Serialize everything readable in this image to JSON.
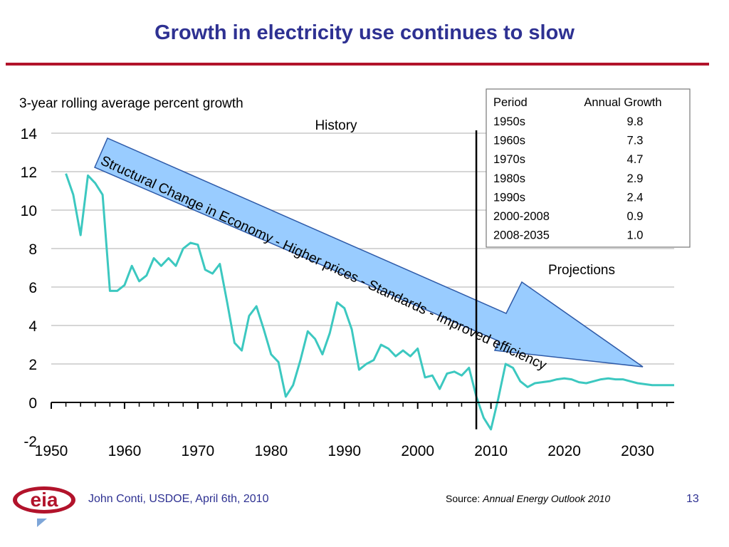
{
  "slide": {
    "title": "Growth in electricity use continues to slow",
    "author": "John Conti, USDOE, April 6th, 2010",
    "source_label": "Source:",
    "source_title": "Annual Energy Outlook 2010",
    "page_number": "13",
    "logo_text": "eia"
  },
  "colors": {
    "title": "#2e3192",
    "rule": "#b2132b",
    "line": "#3cc8c0",
    "arrow_fill": "#99ccff",
    "arrow_stroke": "#2e5aa8",
    "grid": "#c8c8c8"
  },
  "chart_data": {
    "type": "line",
    "ylabel": "3-year rolling average percent growth",
    "xlim": [
      1950,
      2035
    ],
    "ylim": [
      -2,
      14
    ],
    "x_ticks": [
      1950,
      1960,
      1970,
      1980,
      1990,
      2000,
      2010,
      2020,
      2030
    ],
    "y_ticks": [
      -2,
      0,
      2,
      4,
      6,
      8,
      10,
      12,
      14
    ],
    "grid": true,
    "divider_year": 2008,
    "annotations": {
      "history": "History",
      "projections": "Projections",
      "arrow_text": "Structural Change in Economy - Higher prices - Standards - Improved efficiency"
    },
    "series": [
      {
        "x": [
          1952,
          1953,
          1954,
          1955,
          1956,
          1957,
          1958,
          1959,
          1960,
          1961,
          1962,
          1963,
          1964,
          1965,
          1966,
          1967,
          1968,
          1969,
          1970,
          1971,
          1972,
          1973,
          1974,
          1975,
          1976,
          1977,
          1978,
          1979,
          1980,
          1981,
          1982,
          1983,
          1984,
          1985,
          1986,
          1987,
          1988,
          1989,
          1990,
          1991,
          1992,
          1993,
          1994,
          1995,
          1996,
          1997,
          1998,
          1999,
          2000,
          2001,
          2002,
          2003,
          2004,
          2005,
          2006,
          2007,
          2008,
          2009,
          2010,
          2011,
          2012,
          2013,
          2014,
          2015,
          2016,
          2017,
          2018,
          2019,
          2020,
          2021,
          2022,
          2023,
          2024,
          2025,
          2026,
          2027,
          2028,
          2029,
          2030,
          2031,
          2032,
          2033,
          2034,
          2035
        ],
        "y": [
          11.9,
          10.8,
          8.7,
          11.8,
          11.4,
          10.8,
          5.8,
          5.8,
          6.1,
          7.1,
          6.3,
          6.6,
          7.5,
          7.1,
          7.5,
          7.1,
          8.0,
          8.3,
          8.2,
          6.9,
          6.7,
          7.2,
          5.2,
          3.1,
          2.7,
          4.5,
          5.0,
          3.8,
          2.5,
          2.1,
          0.3,
          0.9,
          2.2,
          3.7,
          3.3,
          2.5,
          3.6,
          5.2,
          4.9,
          3.8,
          1.7,
          2.0,
          2.2,
          3.0,
          2.8,
          2.4,
          2.7,
          2.4,
          2.8,
          1.3,
          1.4,
          0.7,
          1.5,
          1.6,
          1.4,
          1.8,
          0.3,
          -0.8,
          -1.4,
          0.2,
          2.0,
          1.8,
          1.1,
          0.8,
          1.0,
          1.05,
          1.1,
          1.2,
          1.25,
          1.2,
          1.05,
          1.0,
          1.1,
          1.2,
          1.25,
          1.2,
          1.2,
          1.1,
          1.0,
          0.95,
          0.9,
          0.9,
          0.9,
          0.9
        ]
      }
    ],
    "table": {
      "headers": [
        "Period",
        "Annual Growth"
      ],
      "rows": [
        [
          "1950s",
          "9.8"
        ],
        [
          "1960s",
          "7.3"
        ],
        [
          "1970s",
          "4.7"
        ],
        [
          "1980s",
          "2.9"
        ],
        [
          "1990s",
          "2.4"
        ],
        [
          "2000-2008",
          "0.9"
        ],
        [
          "2008-2035",
          "1.0"
        ]
      ]
    }
  }
}
